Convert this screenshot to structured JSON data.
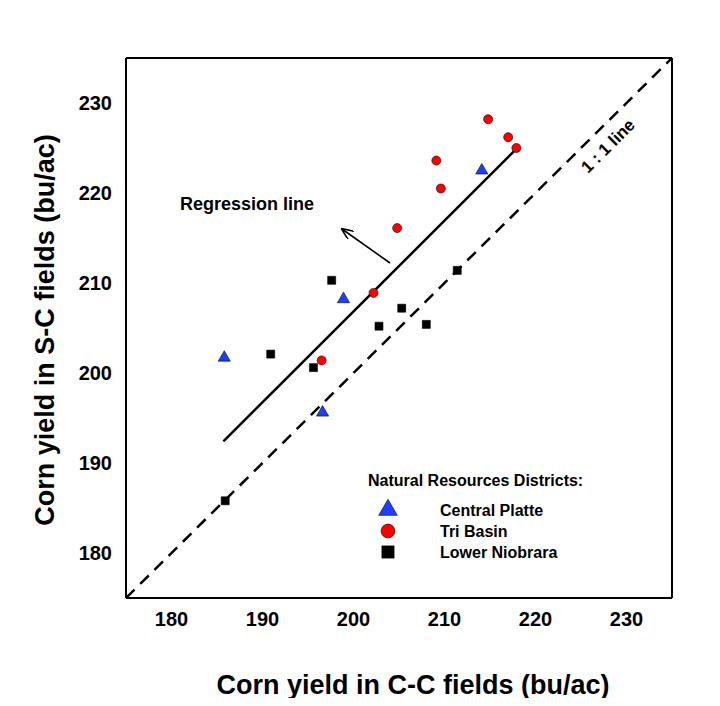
{
  "chart_data": {
    "type": "scatter",
    "xlabel": "Corn yield in C-C fields (bu/ac)",
    "ylabel": "Corn yield in S-C fields (bu/ac)",
    "xlim": [
      175,
      235
    ],
    "ylim": [
      175,
      235
    ],
    "xticks": [
      180,
      190,
      200,
      210,
      220,
      230
    ],
    "yticks": [
      180,
      190,
      200,
      210,
      220,
      230
    ],
    "grid": false,
    "legend": "lower right",
    "legend_title": "Natural Resources Districts:",
    "series": [
      {
        "name": "Central Platte",
        "color": "#1f3fff",
        "marker": "triangle",
        "x": [
          185.8,
          198.9,
          196.6,
          214.1
        ],
        "y": [
          201.7,
          208.2,
          195.6,
          222.5
        ]
      },
      {
        "name": "Tri Basin",
        "color": "#ff0000",
        "marker": "circle",
        "x": [
          214.8,
          217.0,
          217.9,
          209.1,
          209.6,
          204.8,
          202.2,
          196.5
        ],
        "y": [
          228.2,
          226.2,
          225.0,
          223.6,
          220.5,
          216.1,
          208.9,
          201.4
        ]
      },
      {
        "name": "Lower Niobrara",
        "color": "#000000",
        "marker": "square",
        "x": [
          185.9,
          190.9,
          195.6,
          197.6,
          202.8,
          205.3,
          208.0,
          211.4
        ],
        "y": [
          185.8,
          202.1,
          200.6,
          210.3,
          205.2,
          207.2,
          205.4,
          211.4
        ]
      }
    ],
    "annotations": [
      {
        "text": "Regression line",
        "type": "line",
        "line_style": "solid",
        "color": "#000000",
        "x": [
          185.7,
          217.7
        ],
        "y": [
          192.4,
          224.7
        ]
      },
      {
        "text": "1 : 1 line",
        "type": "line",
        "line_style": "dashed",
        "color": "#000000",
        "x": [
          175,
          235
        ],
        "y": [
          175,
          235
        ]
      }
    ]
  }
}
